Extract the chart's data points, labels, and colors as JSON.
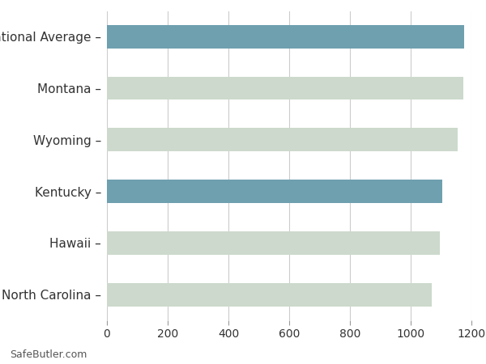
{
  "categories": [
    "North Carolina",
    "Hawaii",
    "Kentucky",
    "Wyoming",
    "Montana",
    "National Average"
  ],
  "values": [
    1070,
    1096,
    1103,
    1155,
    1173,
    1176
  ],
  "bar_colors": [
    "#ccd9cc",
    "#ccd9cc",
    "#6fa0b0",
    "#ccd9cc",
    "#ccd9cc",
    "#6fa0b0"
  ],
  "background_color": "#ffffff",
  "xlim": [
    0,
    1200
  ],
  "xticks": [
    0,
    200,
    400,
    600,
    800,
    1000,
    1200
  ],
  "footer_text": "SafeButler.com",
  "bar_height": 0.45,
  "grid_color": "#cccccc",
  "label_fontsize": 11,
  "tick_fontsize": 10,
  "footer_fontsize": 9
}
